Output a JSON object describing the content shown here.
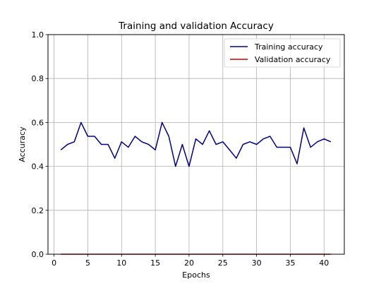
{
  "chart_data": {
    "type": "line",
    "title": "Training and validation Accuracy",
    "xlabel": "Epochs",
    "ylabel": "Accuracy",
    "xlim": [
      -0.9,
      43
    ],
    "ylim": [
      0,
      1.0
    ],
    "xticks": [
      0,
      5,
      10,
      15,
      20,
      25,
      30,
      35,
      40
    ],
    "yticks": [
      0.0,
      0.2,
      0.4,
      0.6,
      0.8,
      1.0
    ],
    "grid": true,
    "legend_position": "top-right",
    "x": [
      1,
      2,
      3,
      4,
      5,
      6,
      7,
      8,
      9,
      10,
      11,
      12,
      13,
      14,
      15,
      16,
      17,
      18,
      19,
      20,
      21,
      22,
      23,
      24,
      25,
      26,
      27,
      28,
      29,
      30,
      31,
      32,
      33,
      34,
      35,
      36,
      37,
      38,
      39,
      40,
      41
    ],
    "series": [
      {
        "name": "Training accuracy",
        "color": "#00008b",
        "values": [
          0.475,
          0.5,
          0.512,
          0.6,
          0.537,
          0.537,
          0.5,
          0.5,
          0.437,
          0.512,
          0.487,
          0.537,
          0.512,
          0.5,
          0.475,
          0.6,
          0.537,
          0.4,
          0.5,
          0.4,
          0.525,
          0.5,
          0.562,
          0.5,
          0.512,
          0.475,
          0.437,
          0.5,
          0.512,
          0.5,
          0.525,
          0.537,
          0.487,
          0.487,
          0.487,
          0.412,
          0.575,
          0.487,
          0.512,
          0.525,
          0.512
        ]
      },
      {
        "name": "Validation accuracy",
        "color": "#cc0000",
        "values": [
          0,
          0,
          0,
          0,
          0,
          0,
          0,
          0,
          0,
          0,
          0,
          0,
          0,
          0,
          0,
          0,
          0,
          0,
          0,
          0,
          0,
          0,
          0,
          0,
          0,
          0,
          0,
          0,
          0,
          0,
          0,
          0,
          0,
          0,
          0,
          0,
          0,
          0,
          0,
          0,
          0
        ]
      }
    ]
  }
}
